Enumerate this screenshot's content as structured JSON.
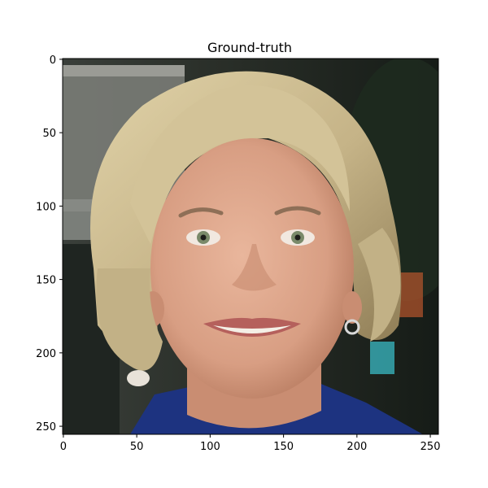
{
  "title": "Ground-truth",
  "axes": {
    "x_ticks": [
      {
        "value": 0,
        "label": "0"
      },
      {
        "value": 50,
        "label": "50"
      },
      {
        "value": 100,
        "label": "100"
      },
      {
        "value": 150,
        "label": "150"
      },
      {
        "value": 200,
        "label": "200"
      },
      {
        "value": 250,
        "label": "250"
      }
    ],
    "y_ticks": [
      {
        "value": 0,
        "label": "0"
      },
      {
        "value": 50,
        "label": "50"
      },
      {
        "value": 100,
        "label": "100"
      },
      {
        "value": 150,
        "label": "150"
      },
      {
        "value": 200,
        "label": "200"
      },
      {
        "value": 250,
        "label": "250"
      }
    ],
    "xlim": [
      -0.5,
      255.5
    ],
    "ylim": [
      255.5,
      -0.5
    ]
  },
  "image": {
    "kind": "photograph",
    "subject": "face",
    "colors": {
      "background_dark": "#1b211c",
      "window_light": "#7e807a",
      "hair": "#c9b98d",
      "hair_shadow": "#8f7f58",
      "skin": "#e0a88e",
      "skin_shadow": "#c18468",
      "iris": "#7a8a6a",
      "lips": "#b5605c",
      "teeth": "#f4efe6",
      "shirt": "#1d3380",
      "light_accent": "#3ab9c4"
    }
  }
}
